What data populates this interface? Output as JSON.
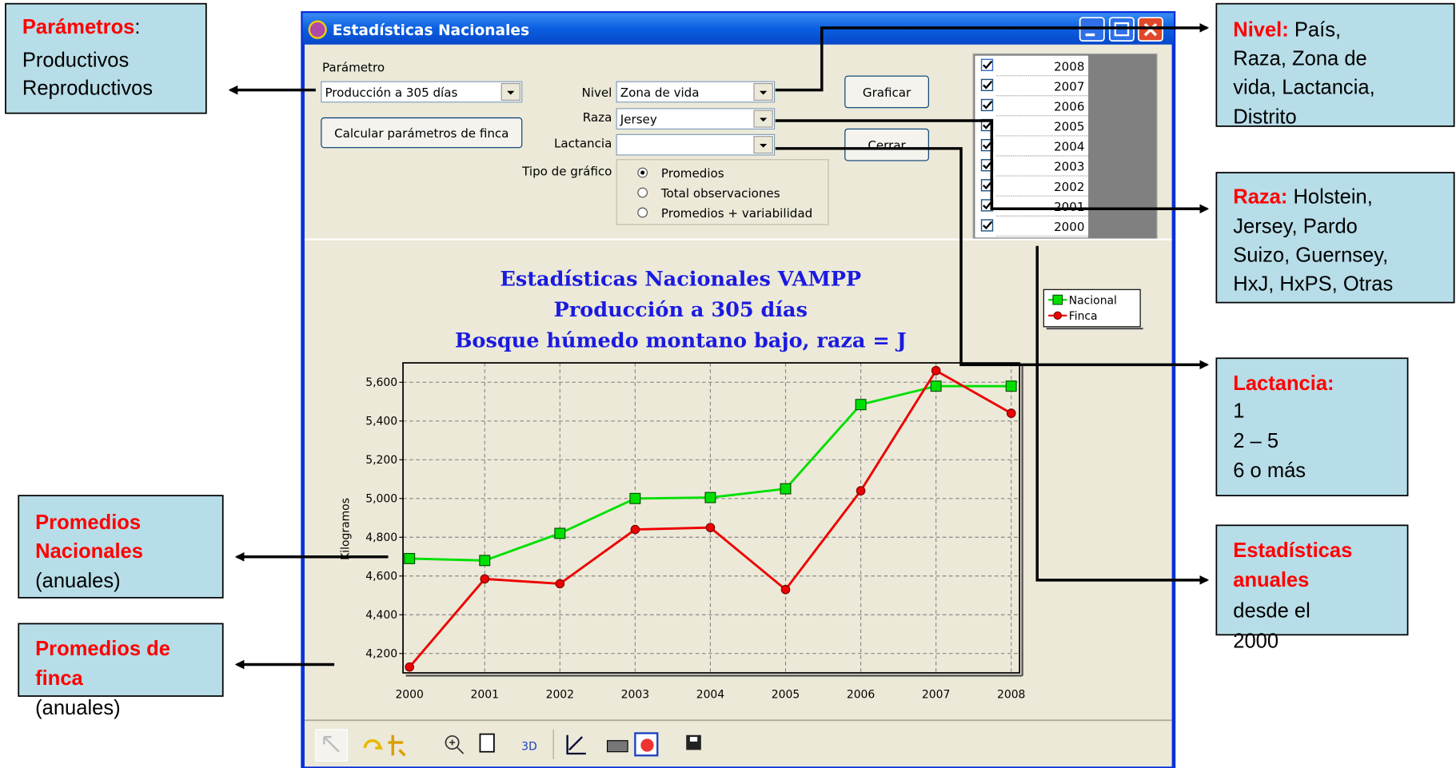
{
  "window": {
    "title": "Estadísticas Nacionales",
    "parametro_label": "Parámetro",
    "parametro": "Producción a 305 días",
    "calc_button": "Calcular parámetros de finca",
    "nivel_label": "Nivel",
    "nivel": "Zona de vida",
    "raza_label": "Raza",
    "raza": "Jersey",
    "lactancia_label": "Lactancia",
    "tipo_label": "Tipo de gráfico",
    "tipo_options": [
      "Promedios",
      "Total observaciones",
      "Promedios + variabilidad"
    ],
    "tipo_selected": 0,
    "graficar": "Graficar",
    "cerrar": "Cerrar",
    "years": [
      "2008",
      "2007",
      "2006",
      "2005",
      "2004",
      "2003",
      "2002",
      "2001",
      "2000"
    ],
    "toolbar_3d": "3D"
  },
  "annotations": [
    {
      "heading": [
        "Parámetros"
      ],
      "inline": ":",
      "body": [
        "Productivos",
        "Reproductivos"
      ]
    },
    {
      "heading": [
        "Nivel:"
      ],
      "inline": "País,",
      "body": [
        "Raza, Zona de",
        "vida, Lactancia,",
        "Distrito"
      ]
    },
    {
      "heading": [
        "Raza:"
      ],
      "inline": "Holstein,",
      "body": [
        "Jersey, Pardo",
        "Suizo, Guernsey,",
        "HxJ, HxPS, Otras"
      ]
    },
    {
      "heading": [
        "Lactancia:"
      ],
      "body": [
        "1",
        "2 – 5",
        "6 o más"
      ]
    },
    {
      "heading": [
        "Promedios",
        "Nacionales"
      ],
      "body": [
        "(anuales)"
      ]
    },
    {
      "heading": [
        "Promedios de",
        "finca"
      ],
      "body": [
        "(anuales)"
      ]
    },
    {
      "heading": [
        "Estadísticas",
        "anuales"
      ],
      "body": [
        "desde el",
        "2000"
      ]
    }
  ],
  "chart_data": {
    "type": "line",
    "title": [
      "Estadísticas Nacionales VAMPP",
      "Producción a 305 días",
      "Bosque húmedo montano bajo, raza = J"
    ],
    "ylabel": "Kilogramos",
    "categories": [
      "2000",
      "2001",
      "2002",
      "2003",
      "2004",
      "2005",
      "2006",
      "2007",
      "2008"
    ],
    "series": [
      {
        "name": "Nacional",
        "color": "#00e000",
        "marker": "square",
        "values": [
          4690,
          4680,
          4820,
          5000,
          5005,
          5050,
          5485,
          5580,
          5580
        ]
      },
      {
        "name": "Finca",
        "color": "#ee0000",
        "marker": "circle",
        "values": [
          4130,
          4585,
          4560,
          4840,
          4850,
          4530,
          5040,
          5660,
          5440
        ]
      }
    ],
    "ylim": [
      4100,
      5700
    ],
    "yticks": [
      {
        "value": 4200,
        "label": "4,200"
      },
      {
        "value": 4400,
        "label": "4,400"
      },
      {
        "value": 4600,
        "label": "4,600"
      },
      {
        "value": 4800,
        "label": "4,800"
      },
      {
        "value": 5000,
        "label": "5,000"
      },
      {
        "value": 5200,
        "label": "5,200"
      },
      {
        "value": 5400,
        "label": "5,400"
      },
      {
        "value": 5600,
        "label": "5,600"
      }
    ],
    "grid": true,
    "legend": "upper right"
  }
}
